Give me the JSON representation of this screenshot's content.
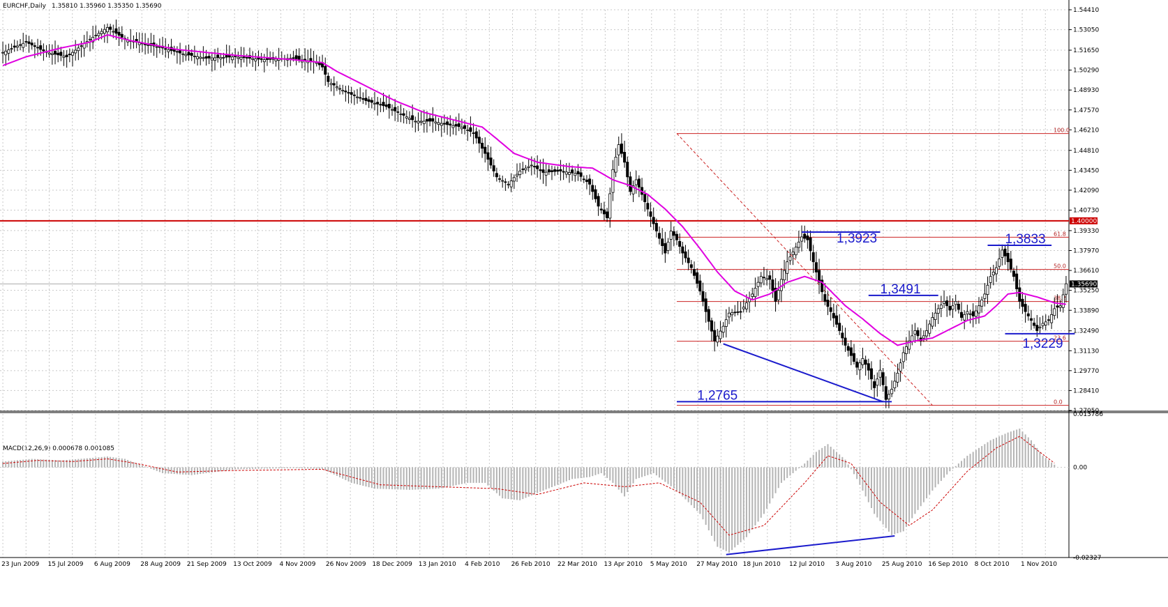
{
  "header": {
    "symbol_label": "EURCHF,Daily",
    "ohlc_label": "1.35810 1.35960 1.35350 1.35690"
  },
  "macd_header": {
    "label": "MACD(12,26,9) 0.000678 0.001085"
  },
  "colors": {
    "candle": "#000000",
    "ma": "#e000e0",
    "support": "#cc0000",
    "fib": "#cc2222",
    "annotation": "#1a1acc",
    "grid": "#c8c8c8",
    "histogram": "#b4b4b4",
    "signal": "#cc0000"
  },
  "chart_data": [
    {
      "type": "candlestick",
      "title": "EURCHF,Daily",
      "y_axis_ticks": [
        "1.54410",
        "1.53050",
        "1.51650",
        "1.50290",
        "1.48930",
        "1.47570",
        "1.46210",
        "1.44810",
        "1.43450",
        "1.42090",
        "1.40730",
        "1.39330",
        "1.37970",
        "1.36610",
        "1.35250",
        "1.33890",
        "1.32490",
        "1.31130",
        "1.29770",
        "1.28410",
        "1.27050"
      ],
      "ylim": [
        1.2705,
        1.5441
      ],
      "current_price_label": "1.35690",
      "horizontal_level": {
        "value": 1.4,
        "label": "1.40000"
      },
      "x_ticks": [
        "23 Jun 2009",
        "15 Jul 2009",
        "6 Aug 2009",
        "28 Aug 2009",
        "21 Sep 2009",
        "13 Oct 2009",
        "4 Nov 2009",
        "26 Nov 2009",
        "18 Dec 2009",
        "13 Jan 2010",
        "4 Feb 2010",
        "26 Feb 2010",
        "22 Mar 2010",
        "13 Apr 2010",
        "5 May 2010",
        "27 May 2010",
        "18 Jun 2010",
        "12 Jul 2010",
        "3 Aug 2010",
        "25 Aug 2010",
        "16 Sep 2010",
        "8 Oct 2010",
        "1 Nov 2010"
      ],
      "fibonacci": {
        "levels": [
          {
            "label": "100.0",
            "value": 1.4596
          },
          {
            "label": "61.8",
            "value": 1.3888
          },
          {
            "label": "50.0",
            "value": 1.3668
          },
          {
            "label": "38.2",
            "value": 1.3449
          },
          {
            "label": "23.6",
            "value": 1.3178
          },
          {
            "label": "0.0",
            "value": 1.274
          }
        ]
      },
      "annotations": [
        {
          "text": "1,3923",
          "value": 1.3923
        },
        {
          "text": "1,3833",
          "value": 1.3833
        },
        {
          "text": "1,3491",
          "value": 1.3491
        },
        {
          "text": "1,3229",
          "value": 1.3229
        },
        {
          "text": "1,2765",
          "value": 1.2765
        }
      ],
      "price_path": [
        [
          0,
          1.515
        ],
        [
          8,
          1.522
        ],
        [
          15,
          1.515
        ],
        [
          22,
          1.512
        ],
        [
          30,
          1.524
        ],
        [
          36,
          1.532
        ],
        [
          42,
          1.524
        ],
        [
          48,
          1.521
        ],
        [
          55,
          1.518
        ],
        [
          62,
          1.514
        ],
        [
          70,
          1.511
        ],
        [
          80,
          1.512
        ],
        [
          90,
          1.51
        ],
        [
          100,
          1.511
        ],
        [
          108,
          1.508
        ],
        [
          110,
          1.505
        ],
        [
          112,
          1.495
        ],
        [
          118,
          1.488
        ],
        [
          125,
          1.482
        ],
        [
          132,
          1.478
        ],
        [
          138,
          1.472
        ],
        [
          142,
          1.468
        ],
        [
          148,
          1.468
        ],
        [
          152,
          1.466
        ],
        [
          158,
          1.464
        ],
        [
          162,
          1.46
        ],
        [
          166,
          1.446
        ],
        [
          170,
          1.43
        ],
        [
          174,
          1.425
        ],
        [
          178,
          1.434
        ],
        [
          182,
          1.438
        ],
        [
          186,
          1.433
        ],
        [
          192,
          1.434
        ],
        [
          198,
          1.432
        ],
        [
          202,
          1.425
        ],
        [
          205,
          1.41
        ],
        [
          208,
          1.402
        ],
        [
          210,
          1.435
        ],
        [
          212,
          1.452
        ],
        [
          214,
          1.44
        ],
        [
          216,
          1.42
        ],
        [
          218,
          1.428
        ],
        [
          220,
          1.418
        ],
        [
          224,
          1.398
        ],
        [
          226,
          1.388
        ],
        [
          228,
          1.378
        ],
        [
          230,
          1.393
        ],
        [
          232,
          1.387
        ],
        [
          234,
          1.378
        ],
        [
          237,
          1.368
        ],
        [
          240,
          1.352
        ],
        [
          242,
          1.338
        ],
        [
          245,
          1.318
        ],
        [
          248,
          1.328
        ],
        [
          250,
          1.337
        ],
        [
          254,
          1.338
        ],
        [
          258,
          1.35
        ],
        [
          261,
          1.362
        ],
        [
          264,
          1.36
        ],
        [
          266,
          1.345
        ],
        [
          268,
          1.36
        ],
        [
          270,
          1.372
        ],
        [
          273,
          1.382
        ],
        [
          275,
          1.389
        ],
        [
          277,
          1.387
        ],
        [
          279,
          1.372
        ],
        [
          281,
          1.358
        ],
        [
          283,
          1.345
        ],
        [
          285,
          1.338
        ],
        [
          288,
          1.325
        ],
        [
          290,
          1.315
        ],
        [
          292,
          1.308
        ],
        [
          294,
          1.3
        ],
        [
          296,
          1.306
        ],
        [
          298,
          1.298
        ],
        [
          300,
          1.286
        ],
        [
          302,
          1.298
        ],
        [
          304,
          1.278
        ],
        [
          306,
          1.285
        ],
        [
          308,
          1.296
        ],
        [
          310,
          1.31
        ],
        [
          312,
          1.318
        ],
        [
          314,
          1.325
        ],
        [
          316,
          1.318
        ],
        [
          318,
          1.325
        ],
        [
          320,
          1.334
        ],
        [
          322,
          1.34
        ],
        [
          324,
          1.345
        ],
        [
          326,
          1.339
        ],
        [
          328,
          1.345
        ],
        [
          330,
          1.334
        ],
        [
          332,
          1.338
        ],
        [
          334,
          1.335
        ],
        [
          336,
          1.342
        ],
        [
          338,
          1.35
        ],
        [
          340,
          1.362
        ],
        [
          342,
          1.368
        ],
        [
          344,
          1.38
        ],
        [
          346,
          1.372
        ],
        [
          348,
          1.362
        ],
        [
          350,
          1.345
        ],
        [
          352,
          1.338
        ],
        [
          354,
          1.332
        ],
        [
          356,
          1.325
        ],
        [
          358,
          1.33
        ],
        [
          360,
          1.332
        ],
        [
          362,
          1.34
        ],
        [
          364,
          1.342
        ],
        [
          366,
          1.357
        ]
      ],
      "ma_path": [
        [
          0,
          1.506
        ],
        [
          8,
          1.512
        ],
        [
          20,
          1.518
        ],
        [
          30,
          1.522
        ],
        [
          36,
          1.527
        ],
        [
          44,
          1.523
        ],
        [
          60,
          1.517
        ],
        [
          80,
          1.513
        ],
        [
          100,
          1.51
        ],
        [
          110,
          1.508
        ],
        [
          115,
          1.502
        ],
        [
          125,
          1.492
        ],
        [
          135,
          1.482
        ],
        [
          145,
          1.474
        ],
        [
          155,
          1.469
        ],
        [
          165,
          1.464
        ],
        [
          170,
          1.456
        ],
        [
          176,
          1.446
        ],
        [
          184,
          1.44
        ],
        [
          195,
          1.437
        ],
        [
          203,
          1.436
        ],
        [
          210,
          1.428
        ],
        [
          216,
          1.424
        ],
        [
          222,
          1.418
        ],
        [
          228,
          1.408
        ],
        [
          234,
          1.396
        ],
        [
          240,
          1.381
        ],
        [
          246,
          1.365
        ],
        [
          252,
          1.352
        ],
        [
          258,
          1.346
        ],
        [
          264,
          1.35
        ],
        [
          270,
          1.358
        ],
        [
          276,
          1.362
        ],
        [
          282,
          1.358
        ],
        [
          286,
          1.35
        ],
        [
          290,
          1.342
        ],
        [
          296,
          1.333
        ],
        [
          302,
          1.323
        ],
        [
          308,
          1.315
        ],
        [
          314,
          1.318
        ],
        [
          320,
          1.32
        ],
        [
          326,
          1.326
        ],
        [
          332,
          1.332
        ],
        [
          338,
          1.335
        ],
        [
          342,
          1.342
        ],
        [
          346,
          1.35
        ],
        [
          350,
          1.351
        ],
        [
          356,
          1.348
        ],
        [
          362,
          1.344
        ],
        [
          366,
          1.343
        ]
      ],
      "lines": [
        {
          "kind": "dashed",
          "from": [
            232,
            1.4596
          ],
          "to": [
            320,
            1.274
          ]
        }
      ]
    },
    {
      "type": "bar",
      "title": "MACD(12,26,9)",
      "y_axis_ticks": [
        "0.013786",
        "0.00",
        "-0.02327"
      ],
      "ylim": [
        -0.02327,
        0.013786
      ],
      "macd_values": [
        [
          0,
          0.0015
        ],
        [
          10,
          0.0022
        ],
        [
          20,
          0.0018
        ],
        [
          30,
          0.0024
        ],
        [
          36,
          0.0028
        ],
        [
          42,
          0.0022
        ],
        [
          48,
          0.0005
        ],
        [
          55,
          -0.0015
        ],
        [
          65,
          -0.002
        ],
        [
          80,
          -0.0005
        ],
        [
          100,
          -0.0002
        ],
        [
          110,
          -0.0004
        ],
        [
          120,
          -0.004
        ],
        [
          128,
          -0.0055
        ],
        [
          140,
          -0.0058
        ],
        [
          150,
          -0.0055
        ],
        [
          160,
          -0.004
        ],
        [
          166,
          -0.004
        ],
        [
          172,
          -0.008
        ],
        [
          178,
          -0.0085
        ],
        [
          186,
          -0.006
        ],
        [
          196,
          -0.003
        ],
        [
          202,
          -0.0025
        ],
        [
          206,
          -0.0015
        ],
        [
          210,
          -0.004
        ],
        [
          214,
          -0.0075
        ],
        [
          218,
          -0.003
        ],
        [
          224,
          -0.0015
        ],
        [
          232,
          -0.006
        ],
        [
          240,
          -0.012
        ],
        [
          246,
          -0.0205
        ],
        [
          250,
          -0.022
        ],
        [
          256,
          -0.018
        ],
        [
          262,
          -0.012
        ],
        [
          268,
          -0.004
        ],
        [
          276,
          0.001
        ],
        [
          280,
          0.004
        ],
        [
          284,
          0.006
        ],
        [
          290,
          0.002
        ],
        [
          294,
          -0.003
        ],
        [
          300,
          -0.012
        ],
        [
          306,
          -0.0175
        ],
        [
          310,
          -0.0165
        ],
        [
          314,
          -0.012
        ],
        [
          320,
          -0.006
        ],
        [
          326,
          -0.001
        ],
        [
          332,
          0.003
        ],
        [
          340,
          0.007
        ],
        [
          346,
          0.009
        ],
        [
          350,
          0.01
        ],
        [
          354,
          0.007
        ],
        [
          358,
          0.003
        ],
        [
          362,
          0.0007
        ]
      ],
      "signal_values": [
        [
          0,
          0.001
        ],
        [
          12,
          0.0018
        ],
        [
          24,
          0.0015
        ],
        [
          36,
          0.0022
        ],
        [
          46,
          0.001
        ],
        [
          60,
          -0.0012
        ],
        [
          80,
          -0.0008
        ],
        [
          110,
          -0.0005
        ],
        [
          130,
          -0.0045
        ],
        [
          150,
          -0.005
        ],
        [
          170,
          -0.0055
        ],
        [
          184,
          -0.007
        ],
        [
          200,
          -0.004
        ],
        [
          214,
          -0.005
        ],
        [
          226,
          -0.004
        ],
        [
          240,
          -0.009
        ],
        [
          250,
          -0.0175
        ],
        [
          262,
          -0.015
        ],
        [
          276,
          -0.004
        ],
        [
          284,
          0.003
        ],
        [
          292,
          0.001
        ],
        [
          302,
          -0.009
        ],
        [
          312,
          -0.015
        ],
        [
          320,
          -0.011
        ],
        [
          332,
          -0.001
        ],
        [
          342,
          0.005
        ],
        [
          350,
          0.008
        ],
        [
          356,
          0.0045
        ],
        [
          362,
          0.0011
        ]
      ]
    }
  ]
}
